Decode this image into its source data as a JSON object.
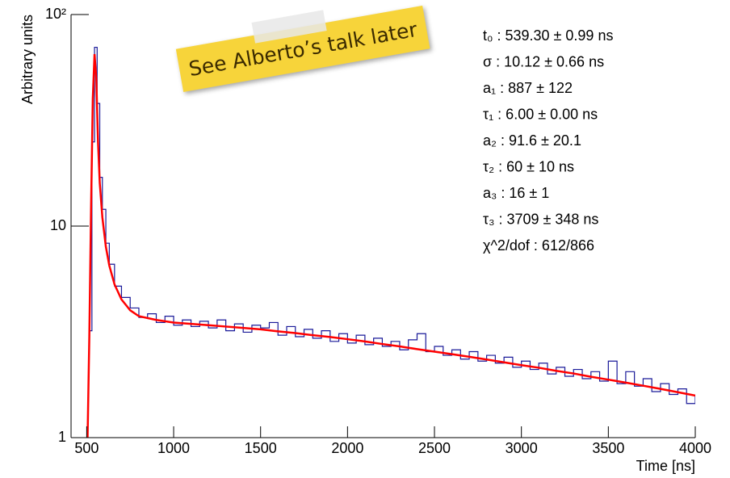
{
  "chart_data": {
    "type": "line",
    "xlabel": "Time [ns]",
    "ylabel": "Arbitrary units",
    "log_y": true,
    "xlim": [
      410,
      4000
    ],
    "ylim": [
      1,
      100
    ],
    "xticks": [
      500,
      1000,
      1500,
      2000,
      2500,
      3000,
      3500,
      4000
    ],
    "yticks": [
      1,
      10,
      {
        "value": 100,
        "label": "10²"
      }
    ],
    "series": [
      {
        "color": "#1a1a99",
        "step": true,
        "x": [
          515,
          530,
          545,
          560,
          575,
          590,
          610,
          630,
          660,
          700,
          750,
          800,
          850,
          900,
          950,
          1000,
          1050,
          1100,
          1150,
          1200,
          1250,
          1300,
          1350,
          1400,
          1450,
          1500,
          1550,
          1600,
          1650,
          1700,
          1750,
          1800,
          1850,
          1900,
          1950,
          2000,
          2050,
          2100,
          2150,
          2200,
          2250,
          2300,
          2350,
          2400,
          2450,
          2500,
          2550,
          2600,
          2650,
          2700,
          2750,
          2800,
          2850,
          2900,
          2950,
          3000,
          3050,
          3100,
          3150,
          3200,
          3250,
          3300,
          3350,
          3400,
          3450,
          3500,
          3550,
          3600,
          3650,
          3700,
          3750,
          3800,
          3850,
          3900,
          3950,
          4000
        ],
        "values": [
          3.2,
          25,
          70,
          38,
          17,
          12,
          8.3,
          6.6,
          5.2,
          4.6,
          4.1,
          3.7,
          3.85,
          3.5,
          3.75,
          3.4,
          3.6,
          3.35,
          3.55,
          3.3,
          3.6,
          3.2,
          3.45,
          3.15,
          3.4,
          3.3,
          3.5,
          3.05,
          3.35,
          3.0,
          3.25,
          2.95,
          3.2,
          2.85,
          3.1,
          2.8,
          3.05,
          2.75,
          2.95,
          2.7,
          2.85,
          2.6,
          2.9,
          3.1,
          2.55,
          2.7,
          2.45,
          2.6,
          2.35,
          2.55,
          2.3,
          2.45,
          2.25,
          2.4,
          2.15,
          2.3,
          2.1,
          2.25,
          2.0,
          2.15,
          1.95,
          2.1,
          1.9,
          2.05,
          1.85,
          2.3,
          1.8,
          2.05,
          1.75,
          1.9,
          1.65,
          1.8,
          1.6,
          1.7,
          1.45,
          1.6
        ]
      },
      {
        "color": "#ff0000",
        "step": false,
        "x": [
          505,
          515,
          525,
          535,
          545,
          555,
          565,
          575,
          590,
          610,
          630,
          660,
          700,
          750,
          800,
          900,
          1000,
          1100,
          1200,
          1300,
          1400,
          1500,
          1600,
          1700,
          1800,
          1900,
          2000,
          2100,
          2200,
          2300,
          2400,
          2500,
          2600,
          2700,
          2800,
          2900,
          3000,
          3100,
          3200,
          3300,
          3400,
          3500,
          3600,
          3700,
          3800,
          3900,
          4000
        ],
        "values": [
          1.0,
          3,
          12,
          40,
          65,
          50,
          25,
          16,
          11,
          8,
          6.5,
          5.3,
          4.5,
          4.0,
          3.75,
          3.6,
          3.5,
          3.45,
          3.4,
          3.35,
          3.3,
          3.25,
          3.18,
          3.12,
          3.05,
          2.99,
          2.92,
          2.85,
          2.77,
          2.7,
          2.62,
          2.55,
          2.48,
          2.41,
          2.34,
          2.27,
          2.2,
          2.14,
          2.07,
          2.01,
          1.94,
          1.88,
          1.82,
          1.76,
          1.7,
          1.64,
          1.58
        ]
      }
    ],
    "fit_parameters": [
      "t₀ : 539.30 ± 0.99 ns",
      "σ : 10.12 ± 0.66 ns",
      "a₁ : 887 ± 122",
      "τ₁ : 6.00 ± 0.00 ns",
      "a₂ : 91.6 ± 20.1",
      "τ₂ : 60 ± 10 ns",
      "a₃ : 16 ± 1",
      "τ₃ : 3709 ± 348 ns",
      "χ^2/dof : 612/866"
    ],
    "annotation": "See Alberto’s talk later"
  }
}
